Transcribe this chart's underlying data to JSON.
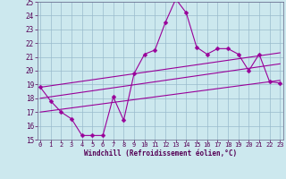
{
  "x": [
    0,
    1,
    2,
    3,
    4,
    5,
    6,
    7,
    8,
    9,
    10,
    11,
    12,
    13,
    14,
    15,
    16,
    17,
    18,
    19,
    20,
    21,
    22,
    23
  ],
  "windchill": [
    18.8,
    17.8,
    17.0,
    16.5,
    15.3,
    15.3,
    15.3,
    18.1,
    16.4,
    19.8,
    21.2,
    21.5,
    23.5,
    25.2,
    24.2,
    21.7,
    21.2,
    21.6,
    21.6,
    21.2,
    20.0,
    21.2,
    19.2,
    19.1
  ],
  "line1_x": [
    0,
    23
  ],
  "line1_y": [
    18.8,
    21.3
  ],
  "line2_x": [
    0,
    23
  ],
  "line2_y": [
    18.0,
    20.5
  ],
  "line3_x": [
    0,
    23
  ],
  "line3_y": [
    17.0,
    19.3
  ],
  "ylim_min": 15,
  "ylim_max": 25,
  "xlim_min": 0,
  "xlim_max": 23,
  "yticks": [
    15,
    16,
    17,
    18,
    19,
    20,
    21,
    22,
    23,
    24,
    25
  ],
  "xticks": [
    0,
    1,
    2,
    3,
    4,
    5,
    6,
    7,
    8,
    9,
    10,
    11,
    12,
    13,
    14,
    15,
    16,
    17,
    18,
    19,
    20,
    21,
    22,
    23
  ],
  "xlabel": "Windchill (Refroidissement éolien,°C)",
  "line_color": "#990099",
  "bg_color": "#cce8ee",
  "grid_color": "#99bbcc",
  "marker_size": 2.5,
  "tick_fontsize": 5.0,
  "label_fontsize": 5.5,
  "ytick_fontsize": 5.5
}
